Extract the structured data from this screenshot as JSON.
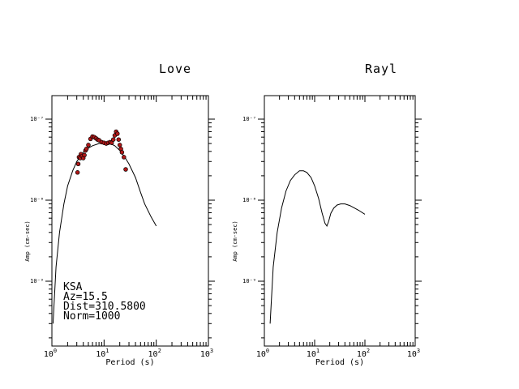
{
  "chart_data": [
    {
      "type": "line",
      "title": "Love",
      "xlabel": "Period (s)",
      "ylabel": "Amp (cm-sec)",
      "x_scale": "log",
      "y_scale": "log",
      "xlim": [
        1,
        1000
      ],
      "ylim": [
        3e-10,
        2e-07
      ],
      "x_ticks": [
        {
          "value": 1,
          "base": "10",
          "exp": "0"
        },
        {
          "value": 10,
          "base": "10",
          "exp": "1"
        },
        {
          "value": 100,
          "base": "10",
          "exp": "2"
        },
        {
          "value": 1000,
          "base": "10",
          "exp": "3"
        }
      ],
      "y_ticks": [
        {
          "value": 1e-09,
          "label": "10⁻⁹"
        },
        {
          "value": 1e-08,
          "label": "10⁻⁸"
        },
        {
          "value": 1e-07,
          "label": "10⁻⁷"
        }
      ],
      "annotation_lines": [
        "KSA",
        "Az=15.5",
        "Dist=310.5800",
        "Norm=1000"
      ],
      "series": [
        {
          "kind": "line",
          "x": [
            1.05,
            1.2,
            1.4,
            1.7,
            2.0,
            2.5,
            3.0,
            4.0,
            5.0,
            6.0,
            8.0,
            10.0,
            13.0,
            16.0,
            20.0,
            25.0,
            30.0,
            40.0,
            50.0,
            60.0,
            80.0,
            100.0
          ],
          "y": [
            3e-10,
            1.5e-09,
            4e-09,
            9e-09,
            1.5e-08,
            2.3e-08,
            3e-08,
            3.9e-08,
            4.4e-08,
            4.7e-08,
            5e-08,
            5.1e-08,
            5e-08,
            4.7e-08,
            4.1e-08,
            3.4e-08,
            2.8e-08,
            1.9e-08,
            1.25e-08,
            9e-09,
            6.2e-09,
            4.8e-09
          ]
        },
        {
          "kind": "scatter",
          "x": [
            3.1,
            3.2,
            3.3,
            3.5,
            3.6,
            3.8,
            4.0,
            4.2,
            4.4,
            4.6,
            5.0,
            5.5,
            6.0,
            6.5,
            7.0,
            7.5,
            8.0,
            9.0,
            10.0,
            11.0,
            12.0,
            13.0,
            14.0,
            15.0,
            16.0,
            17.0,
            18.0,
            19.0,
            20.0,
            21.0,
            22.0,
            24.0,
            26.0
          ],
          "y": [
            2.2e-08,
            2.8e-08,
            3.4e-08,
            3.3e-08,
            3.7e-08,
            3.5e-08,
            3.3e-08,
            3.6e-08,
            4.1e-08,
            4.3e-08,
            4.8e-08,
            5.7e-08,
            6.1e-08,
            6e-08,
            5.8e-08,
            5.6e-08,
            5.5e-08,
            5.2e-08,
            5.1e-08,
            5e-08,
            5.1e-08,
            5.2e-08,
            5.1e-08,
            5.6e-08,
            6.3e-08,
            7e-08,
            6.6e-08,
            5.6e-08,
            4.8e-08,
            4.3e-08,
            3.9e-08,
            3.4e-08,
            2.4e-08
          ]
        }
      ]
    },
    {
      "type": "line",
      "title": "Rayl",
      "xlabel": "Period (s)",
      "ylabel": "Amp (cm-sec)",
      "x_scale": "log",
      "y_scale": "log",
      "xlim": [
        1,
        1000
      ],
      "ylim": [
        3e-10,
        2e-07
      ],
      "x_ticks": [
        {
          "value": 1,
          "base": "10",
          "exp": "0"
        },
        {
          "value": 10,
          "base": "10",
          "exp": "1"
        },
        {
          "value": 100,
          "base": "10",
          "exp": "2"
        },
        {
          "value": 1000,
          "base": "10",
          "exp": "3"
        }
      ],
      "y_ticks": [
        {
          "value": 1e-09,
          "label": "10⁻⁹"
        },
        {
          "value": 1e-08,
          "label": "10⁻⁸"
        },
        {
          "value": 1e-07,
          "label": "10⁻⁷"
        }
      ],
      "annotation_lines": [],
      "series": [
        {
          "kind": "line",
          "x": [
            1.3,
            1.5,
            1.8,
            2.2,
            2.7,
            3.3,
            4.0,
            5.0,
            6.0,
            7.0,
            8.5,
            10.0,
            12.0,
            14.0,
            16.0,
            17.5,
            19.0,
            21.0,
            24.0,
            28.0,
            33.0,
            40.0,
            50.0,
            60.0,
            75.0,
            100.0
          ],
          "y": [
            3e-10,
            1.5e-09,
            4e-09,
            8e-09,
            1.3e-08,
            1.75e-08,
            2.05e-08,
            2.3e-08,
            2.3e-08,
            2.2e-08,
            1.9e-08,
            1.5e-08,
            1.05e-08,
            7e-09,
            5.2e-09,
            4.8e-09,
            5.5e-09,
            6.9e-09,
            8e-09,
            8.7e-09,
            9e-09,
            9e-09,
            8.6e-09,
            8.1e-09,
            7.5e-09,
            6.7e-09
          ]
        }
      ]
    }
  ]
}
